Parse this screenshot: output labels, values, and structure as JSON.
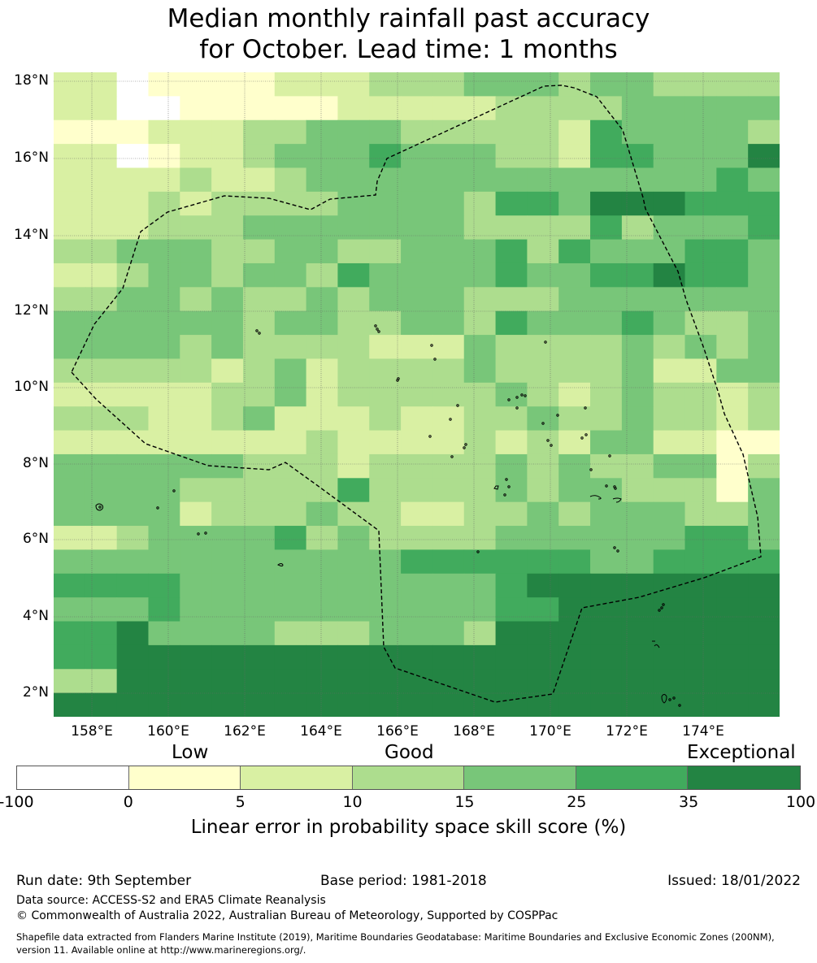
{
  "title": {
    "line1": "Median monthly rainfall past accuracy",
    "line2": "for October. Lead time: 1 months"
  },
  "map": {
    "lat_ticks": [
      "18°N",
      "16°N",
      "14°N",
      "12°N",
      "10°N",
      "8°N",
      "6°N",
      "4°N",
      "2°N"
    ],
    "lon_ticks": [
      "158°E",
      "160°E",
      "162°E",
      "164°E",
      "166°E",
      "168°E",
      "170°E",
      "172°E",
      "174°E"
    ],
    "grid_lines": true,
    "boundary": "dashed black outline (EEZ)",
    "value_colors": {
      "below_0": "#ffffff",
      "0_5": "#ffffcc",
      "5_10": "#d9f0a3",
      "10_15": "#addd8e",
      "15_25": "#78c679",
      "25_35": "#41ab5d",
      "35_100": "#238443"
    },
    "cell_rows": [
      "1W0000111223332332222",
      "1WW000001111222233333",
      "001112233322221433332",
      "1W0112333433221443335",
      "111211233333333333343",
      "112122223332443555444",
      "112223333332222423334",
      "233322332233424333443",
      "123323324333433445443",
      "233232232332223333333",
      "333332332232433343223",
      "333232222113222232323",
      "222212312223222231133",
      "111122312222321232212",
      "221123111212232232212",
      "111111121112121331100",
      "333332221222323223302",
      "333222224222323322203",
      "333122232212232333223",
      "123333423222333333443",
      "333333333344444334444",
      "444333333333455566666",
      "334333333333445666666",
      "453333222332566666666",
      "455666666666666666666",
      "256666666666666666666",
      "556666666666666666666"
    ]
  },
  "legend": {
    "categories": [
      "Low",
      "Good",
      "Exceptional"
    ],
    "ticks": [
      "-100",
      "0",
      "5",
      "10",
      "15",
      "25",
      "35",
      "100"
    ],
    "colors": [
      "#ffffff",
      "#ffffcc",
      "#d9f0a3",
      "#addd8e",
      "#78c679",
      "#41ab5d",
      "#238443"
    ],
    "title": "Linear error in probability space skill score (%)"
  },
  "footer": {
    "run_date": "Run date: 9th September",
    "base_period": "Base period: 1981-2018",
    "issued": "Issued: 18/01/2022",
    "data_source": "Data source: ACCESS-S2 and ERA5 Climate Reanalysis",
    "copyright": "© Commonwealth of Australia 2022, Australian Bureau of Meteorology, Supported by COSPPac",
    "shapefile_line1": "Shapefile data extracted from Flanders Marine Institute (2019), Maritime Boundaries Geodatabase: Maritime Boundaries and Exclusive Economic Zones (200NM),",
    "shapefile_line2": "version 11. Available online at http://www.marineregions.org/."
  }
}
